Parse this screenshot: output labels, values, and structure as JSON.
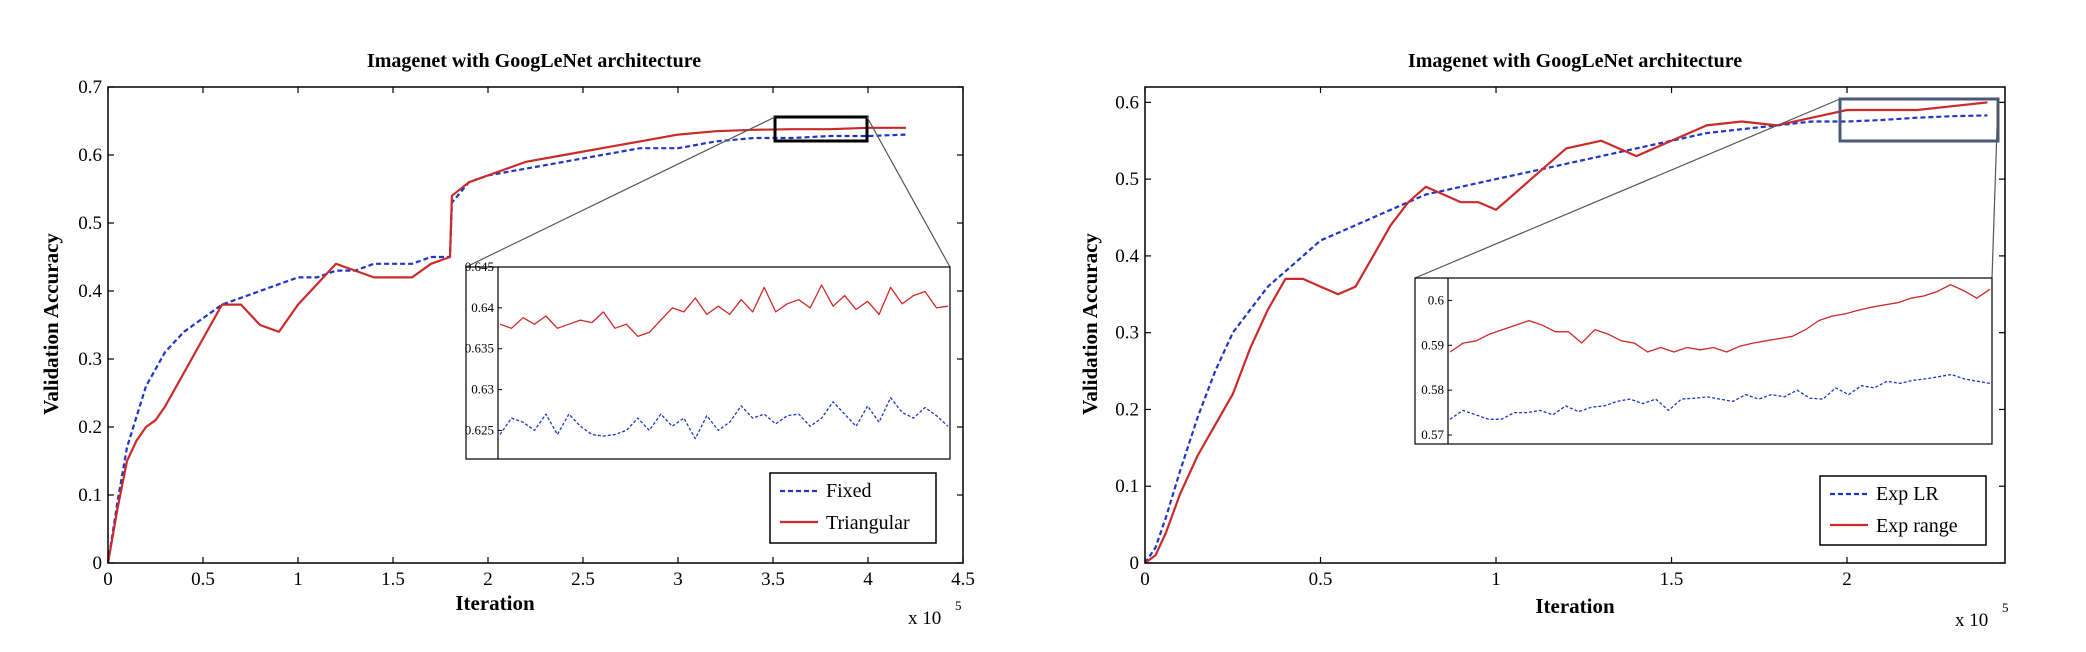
{
  "colors": {
    "series1": "#1f35c8",
    "series2": "#cc2a2a",
    "box_left": "#000000",
    "box_right": "#4a5a74"
  },
  "chart_data": [
    {
      "type": "line",
      "title": "Imagenet with GoogLeNet architecture",
      "xlabel": "Iteration",
      "ylabel": "Validation Accuracy",
      "x_multiplier": "x 10",
      "x_multiplier_exp": "5",
      "xlim": [
        0,
        4.5
      ],
      "ylim": [
        0,
        0.7
      ],
      "xticks": [
        "0",
        "0.5",
        "1",
        "1.5",
        "2",
        "2.5",
        "3",
        "3.5",
        "4",
        "4.5"
      ],
      "yticks": [
        "0",
        "0.1",
        "0.2",
        "0.3",
        "0.4",
        "0.5",
        "0.6",
        "0.7"
      ],
      "legend_position": "bottom-right",
      "series": [
        {
          "name": "Fixed",
          "style": "dashed",
          "x": [
            0,
            0.05,
            0.1,
            0.2,
            0.3,
            0.4,
            0.5,
            0.6,
            0.7,
            0.8,
            0.9,
            1.0,
            1.1,
            1.2,
            1.3,
            1.4,
            1.5,
            1.6,
            1.7,
            1.8,
            1.81,
            1.9,
            2.0,
            2.2,
            2.4,
            2.6,
            2.8,
            3.0,
            3.2,
            3.4,
            3.6,
            3.8,
            4.0,
            4.2
          ],
          "y": [
            0.0,
            0.09,
            0.17,
            0.26,
            0.31,
            0.34,
            0.36,
            0.38,
            0.39,
            0.4,
            0.41,
            0.42,
            0.42,
            0.43,
            0.43,
            0.44,
            0.44,
            0.44,
            0.45,
            0.45,
            0.53,
            0.56,
            0.57,
            0.58,
            0.59,
            0.6,
            0.61,
            0.61,
            0.62,
            0.625,
            0.625,
            0.628,
            0.628,
            0.63
          ]
        },
        {
          "name": "Triangular",
          "style": "solid",
          "x": [
            0,
            0.05,
            0.1,
            0.15,
            0.2,
            0.25,
            0.3,
            0.4,
            0.5,
            0.6,
            0.7,
            0.8,
            0.9,
            1.0,
            1.1,
            1.2,
            1.3,
            1.4,
            1.5,
            1.6,
            1.7,
            1.8,
            1.81,
            1.9,
            2.0,
            2.2,
            2.4,
            2.6,
            2.8,
            3.0,
            3.2,
            3.4,
            3.6,
            3.8,
            4.0,
            4.2
          ],
          "y": [
            0.0,
            0.08,
            0.15,
            0.18,
            0.2,
            0.21,
            0.23,
            0.28,
            0.33,
            0.38,
            0.38,
            0.35,
            0.34,
            0.38,
            0.41,
            0.44,
            0.43,
            0.42,
            0.42,
            0.42,
            0.44,
            0.45,
            0.54,
            0.56,
            0.57,
            0.59,
            0.6,
            0.61,
            0.62,
            0.63,
            0.635,
            0.637,
            0.638,
            0.638,
            0.64,
            0.64
          ]
        }
      ],
      "inset": {
        "ylim": [
          0.6215,
          0.645
        ],
        "yticks": [
          "0.625",
          "0.63",
          "0.635",
          "0.64",
          "0.645"
        ],
        "series": [
          {
            "name": "Fixed",
            "y": [
              0.6245,
              0.6265,
              0.626,
              0.625,
              0.627,
              0.6245,
              0.627,
              0.6255,
              0.6245,
              0.6243,
              0.6245,
              0.625,
              0.6265,
              0.625,
              0.627,
              0.6255,
              0.6265,
              0.624,
              0.6268,
              0.625,
              0.626,
              0.628,
              0.6265,
              0.627,
              0.6258,
              0.6268,
              0.627,
              0.6255,
              0.6265,
              0.6285,
              0.627,
              0.6255,
              0.628,
              0.626,
              0.629,
              0.6272,
              0.6265,
              0.6278,
              0.6268,
              0.6255
            ]
          },
          {
            "name": "Triangular",
            "y": [
              0.638,
              0.6375,
              0.6388,
              0.638,
              0.639,
              0.6375,
              0.638,
              0.6385,
              0.6382,
              0.6395,
              0.6375,
              0.638,
              0.6365,
              0.637,
              0.6385,
              0.64,
              0.6395,
              0.6412,
              0.6392,
              0.6402,
              0.6392,
              0.641,
              0.6395,
              0.6425,
              0.6395,
              0.6405,
              0.641,
              0.64,
              0.6428,
              0.6402,
              0.6415,
              0.6398,
              0.6408,
              0.6392,
              0.6425,
              0.6405,
              0.6415,
              0.642,
              0.64,
              0.6402
            ]
          }
        ]
      }
    },
    {
      "type": "line",
      "title": "Imagenet with GoogLeNet architecture",
      "xlabel": "Iteration",
      "ylabel": "Validation Accuracy",
      "x_multiplier": "x 10",
      "x_multiplier_exp": "5",
      "xlim": [
        0,
        2.45
      ],
      "ylim": [
        0,
        0.62
      ],
      "xticks": [
        "0",
        "0.5",
        "1",
        "1.5",
        "2"
      ],
      "yticks": [
        "0",
        "0.1",
        "0.2",
        "0.3",
        "0.4",
        "0.5",
        "0.6"
      ],
      "legend_position": "bottom-right",
      "series": [
        {
          "name": "Exp LR",
          "style": "dashed",
          "x": [
            0,
            0.03,
            0.06,
            0.1,
            0.15,
            0.2,
            0.25,
            0.3,
            0.35,
            0.4,
            0.45,
            0.5,
            0.55,
            0.6,
            0.7,
            0.8,
            0.9,
            1.0,
            1.1,
            1.2,
            1.3,
            1.4,
            1.5,
            1.6,
            1.7,
            1.8,
            1.9,
            2.0,
            2.1,
            2.2,
            2.3,
            2.4
          ],
          "y": [
            0.0,
            0.02,
            0.06,
            0.12,
            0.19,
            0.25,
            0.3,
            0.33,
            0.36,
            0.38,
            0.4,
            0.42,
            0.43,
            0.44,
            0.46,
            0.48,
            0.49,
            0.5,
            0.51,
            0.52,
            0.53,
            0.54,
            0.55,
            0.56,
            0.565,
            0.57,
            0.575,
            0.575,
            0.577,
            0.58,
            0.582,
            0.583
          ]
        },
        {
          "name": "Exp range",
          "style": "solid",
          "x": [
            0,
            0.03,
            0.06,
            0.1,
            0.15,
            0.2,
            0.25,
            0.3,
            0.35,
            0.4,
            0.45,
            0.5,
            0.55,
            0.6,
            0.65,
            0.7,
            0.75,
            0.8,
            0.85,
            0.9,
            0.95,
            1.0,
            1.05,
            1.1,
            1.2,
            1.3,
            1.4,
            1.5,
            1.6,
            1.7,
            1.8,
            1.9,
            2.0,
            2.1,
            2.2,
            2.3,
            2.4
          ],
          "y": [
            0.0,
            0.01,
            0.04,
            0.09,
            0.14,
            0.18,
            0.22,
            0.28,
            0.33,
            0.37,
            0.37,
            0.36,
            0.35,
            0.36,
            0.4,
            0.44,
            0.47,
            0.49,
            0.48,
            0.47,
            0.47,
            0.46,
            0.48,
            0.5,
            0.54,
            0.55,
            0.53,
            0.55,
            0.57,
            0.575,
            0.57,
            0.58,
            0.59,
            0.59,
            0.59,
            0.595,
            0.6
          ]
        }
      ],
      "inset": {
        "ylim": [
          0.568,
          0.605
        ],
        "yticks": [
          "0.57",
          "0.58",
          "0.59",
          "0.6"
        ],
        "series": [
          {
            "name": "Exp LR",
            "y": [
              0.5735,
              0.5755,
              0.5745,
              0.5735,
              0.5735,
              0.575,
              0.575,
              0.5755,
              0.5745,
              0.5765,
              0.5752,
              0.5762,
              0.5765,
              0.5775,
              0.578,
              0.577,
              0.578,
              0.5755,
              0.578,
              0.5782,
              0.5785,
              0.578,
              0.5775,
              0.579,
              0.578,
              0.579,
              0.5785,
              0.58,
              0.5782,
              0.578,
              0.5805,
              0.579,
              0.581,
              0.5805,
              0.582,
              0.5815,
              0.5822,
              0.5825,
              0.583,
              0.5835,
              0.5825,
              0.582,
              0.5815
            ]
          },
          {
            "name": "Exp range",
            "y": [
              0.5885,
              0.5905,
              0.591,
              0.5925,
              0.5935,
              0.5945,
              0.5955,
              0.5945,
              0.593,
              0.593,
              0.5905,
              0.5935,
              0.5925,
              0.591,
              0.5905,
              0.5885,
              0.5895,
              0.5885,
              0.5895,
              0.589,
              0.5895,
              0.5885,
              0.5898,
              0.5905,
              0.591,
              0.5915,
              0.592,
              0.5935,
              0.5955,
              0.5965,
              0.597,
              0.5978,
              0.5985,
              0.599,
              0.5995,
              0.6005,
              0.601,
              0.602,
              0.6035,
              0.6022,
              0.6005,
              0.6025
            ]
          }
        ]
      }
    }
  ]
}
